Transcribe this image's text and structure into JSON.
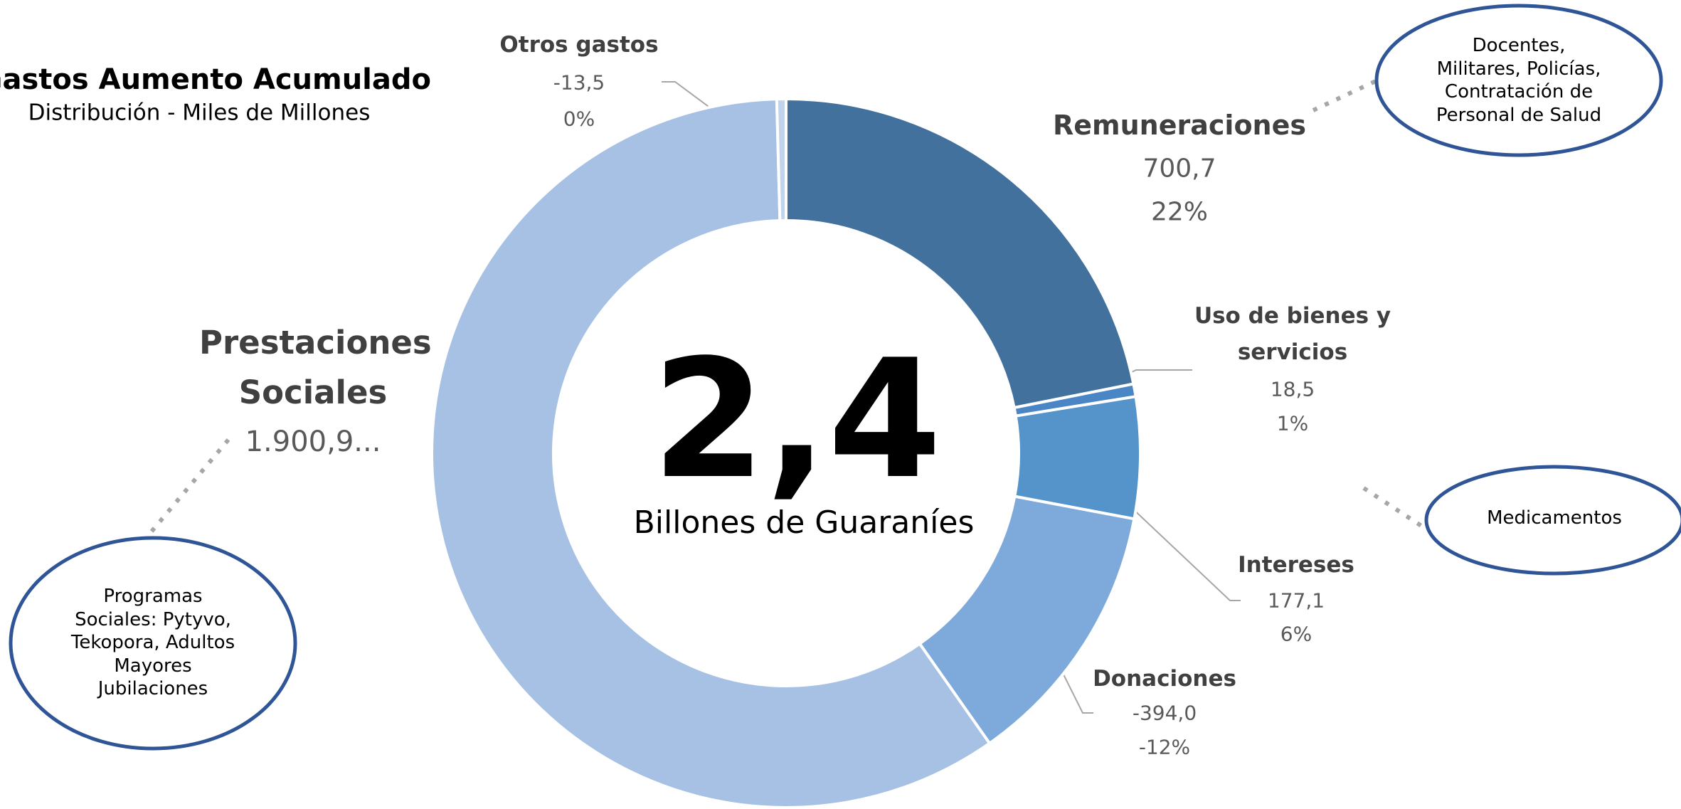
{
  "chart_data": {
    "type": "donut",
    "title": "Gastos Aumento Acumulado",
    "subtitle": "Distribución - Miles de Millones",
    "center_value": "2,4",
    "center_label": "Billones de Guaraníes",
    "categories": [
      "Remuneraciones",
      "Uso de bienes y servicios",
      "Intereses",
      "Donaciones",
      "Prestaciones Sociales",
      "Otros gastos"
    ],
    "values": [
      700.7,
      18.5,
      177.1,
      -394.0,
      1900.9,
      -13.5
    ],
    "value_labels": [
      "700,7",
      "18,5",
      "177,1",
      "-394,0",
      "1.900,9...",
      "-13,5"
    ],
    "percent_labels": [
      "22%",
      "1%",
      "6%",
      "-12%",
      null,
      "0%"
    ],
    "colors": [
      "#41719c",
      "#4a86c5",
      "#5593cb",
      "#7eaadb",
      "#a6c1e4",
      "#c2d3ec"
    ],
    "annotations": [
      "Docentes, Militares, Policías, Contratación de Personal de Salud",
      "Medicamentos",
      "Programas Sociales: Pytyvo, Tekopora, Adultos Mayores Jubilaciones"
    ]
  }
}
